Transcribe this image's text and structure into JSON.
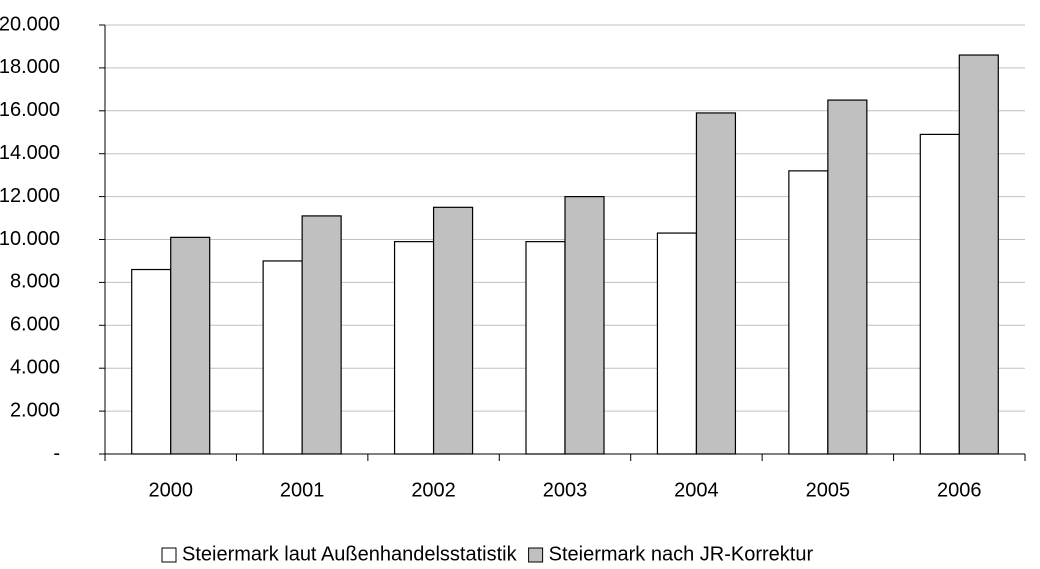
{
  "chart_data": {
    "type": "bar",
    "categories": [
      "2000",
      "2001",
      "2002",
      "2003",
      "2004",
      "2005",
      "2006"
    ],
    "series": [
      {
        "name": "Steiermark laut Außenhandelsstatistik",
        "color": "#ffffff",
        "values": [
          8600,
          9000,
          9900,
          9900,
          10300,
          13200,
          14900
        ]
      },
      {
        "name": "Steiermark nach JR-Korrektur",
        "color": "#c0c0c0",
        "values": [
          10100,
          11100,
          11500,
          12000,
          15900,
          16500,
          18600
        ]
      }
    ],
    "ylim": [
      0,
      20000
    ],
    "yticks": [
      {
        "value": 0,
        "label": "-"
      },
      {
        "value": 2000,
        "label": "2.000"
      },
      {
        "value": 4000,
        "label": "4.000"
      },
      {
        "value": 6000,
        "label": "6.000"
      },
      {
        "value": 8000,
        "label": "8.000"
      },
      {
        "value": 10000,
        "label": "10.000"
      },
      {
        "value": 12000,
        "label": "12.000"
      },
      {
        "value": 14000,
        "label": "14.000"
      },
      {
        "value": 16000,
        "label": "16.000"
      },
      {
        "value": 18000,
        "label": "18.000"
      },
      {
        "value": 20000,
        "label": "20.000"
      }
    ],
    "grid": true,
    "legend": "bottom"
  }
}
